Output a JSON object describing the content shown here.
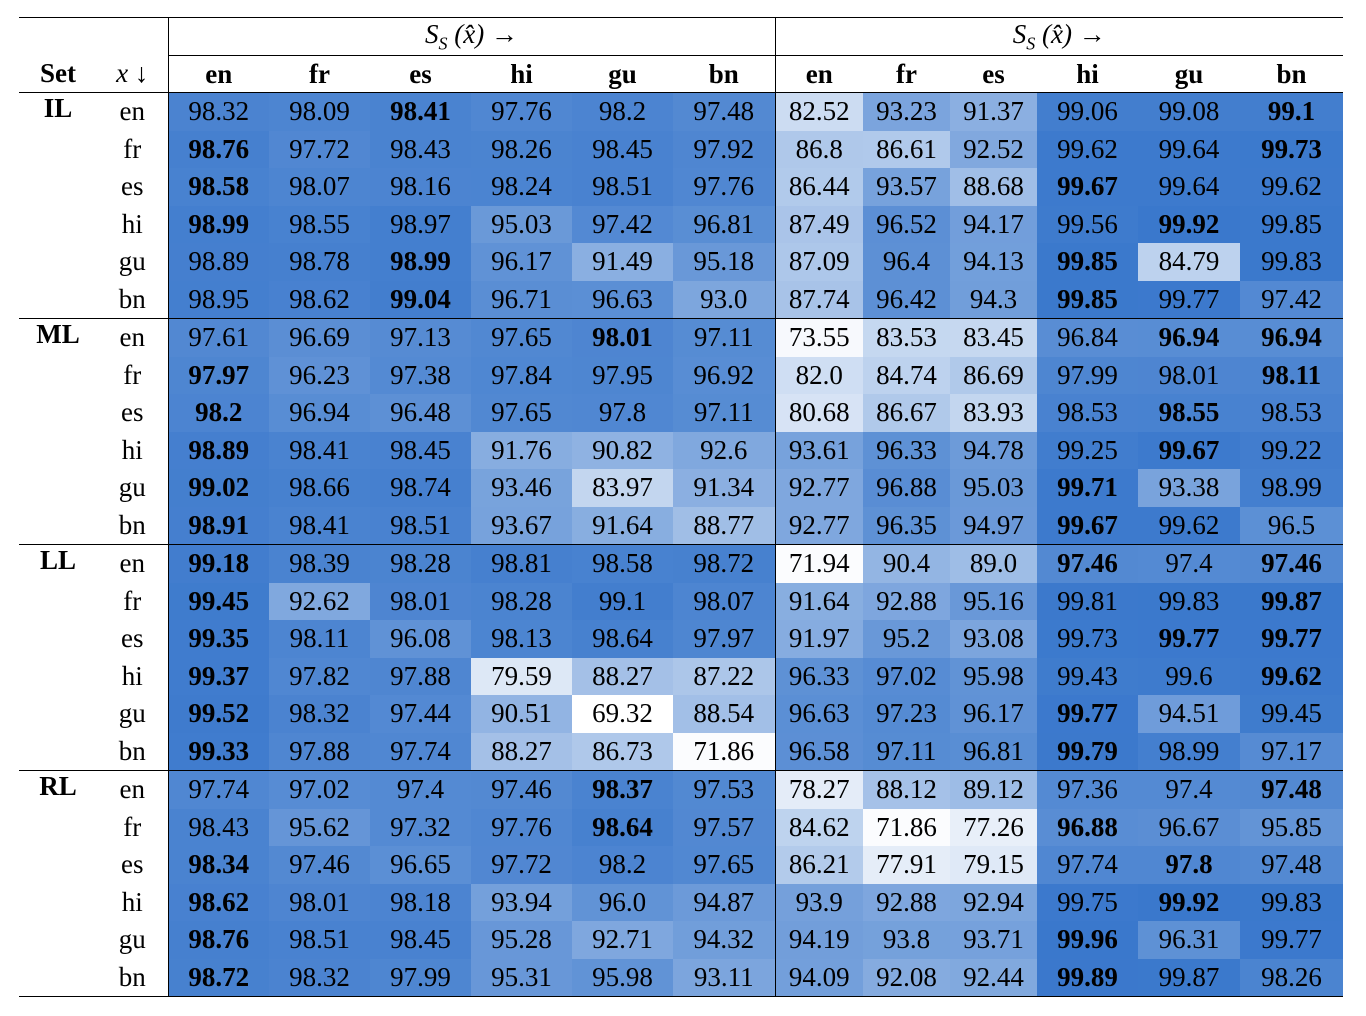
{
  "header": {
    "group_left": "S_S (x̂) →",
    "group_right": "S_S (x̂) →",
    "set_label": "Set",
    "x_label": "x ↓",
    "columns": [
      "en",
      "fr",
      "es",
      "hi",
      "gu",
      "bn",
      "en",
      "fr",
      "es",
      "hi",
      "gu",
      "bn"
    ]
  },
  "chart_data": {
    "type": "table",
    "columns": [
      "en",
      "fr",
      "es",
      "hi",
      "gu",
      "bn",
      "en",
      "fr",
      "es",
      "hi",
      "gu",
      "bn"
    ],
    "groups": [
      {
        "set": "IL",
        "rows": [
          {
            "x": "en",
            "values": [
              "98.32",
              "98.09",
              "98.41",
              "97.76",
              "98.2",
              "97.48",
              "82.52",
              "93.23",
              "91.37",
              "99.06",
              "99.08",
              "99.1"
            ],
            "bold": [
              2,
              11
            ]
          },
          {
            "x": "fr",
            "values": [
              "98.76",
              "97.72",
              "98.43",
              "98.26",
              "98.45",
              "97.92",
              "86.8",
              "86.61",
              "92.52",
              "99.62",
              "99.64",
              "99.73"
            ],
            "bold": [
              0,
              11
            ]
          },
          {
            "x": "es",
            "values": [
              "98.58",
              "98.07",
              "98.16",
              "98.24",
              "98.51",
              "97.76",
              "86.44",
              "93.57",
              "88.68",
              "99.67",
              "99.64",
              "99.62"
            ],
            "bold": [
              0,
              9
            ]
          },
          {
            "x": "hi",
            "values": [
              "98.99",
              "98.55",
              "98.97",
              "95.03",
              "97.42",
              "96.81",
              "87.49",
              "96.52",
              "94.17",
              "99.56",
              "99.92",
              "99.85"
            ],
            "bold": [
              0,
              10
            ]
          },
          {
            "x": "gu",
            "values": [
              "98.89",
              "98.78",
              "98.99",
              "96.17",
              "91.49",
              "95.18",
              "87.09",
              "96.4",
              "94.13",
              "99.85",
              "84.79",
              "99.83"
            ],
            "bold": [
              2,
              9
            ]
          },
          {
            "x": "bn",
            "values": [
              "98.95",
              "98.62",
              "99.04",
              "96.71",
              "96.63",
              "93.0",
              "87.74",
              "96.42",
              "94.3",
              "99.85",
              "99.77",
              "97.42"
            ],
            "bold": [
              2,
              9
            ]
          }
        ]
      },
      {
        "set": "ML",
        "rows": [
          {
            "x": "en",
            "values": [
              "97.61",
              "96.69",
              "97.13",
              "97.65",
              "98.01",
              "97.11",
              "73.55",
              "83.53",
              "83.45",
              "96.84",
              "96.94",
              "96.94"
            ],
            "bold": [
              4,
              10,
              11
            ]
          },
          {
            "x": "fr",
            "values": [
              "97.97",
              "96.23",
              "97.38",
              "97.84",
              "97.95",
              "96.92",
              "82.0",
              "84.74",
              "86.69",
              "97.99",
              "98.01",
              "98.11"
            ],
            "bold": [
              0,
              11
            ]
          },
          {
            "x": "es",
            "values": [
              "98.2",
              "96.94",
              "96.48",
              "97.65",
              "97.8",
              "97.11",
              "80.68",
              "86.67",
              "83.93",
              "98.53",
              "98.55",
              "98.53"
            ],
            "bold": [
              0,
              10
            ]
          },
          {
            "x": "hi",
            "values": [
              "98.89",
              "98.41",
              "98.45",
              "91.76",
              "90.82",
              "92.6",
              "93.61",
              "96.33",
              "94.78",
              "99.25",
              "99.67",
              "99.22"
            ],
            "bold": [
              0,
              10
            ]
          },
          {
            "x": "gu",
            "values": [
              "99.02",
              "98.66",
              "98.74",
              "93.46",
              "83.97",
              "91.34",
              "92.77",
              "96.88",
              "95.03",
              "99.71",
              "93.38",
              "98.99"
            ],
            "bold": [
              0,
              9
            ]
          },
          {
            "x": "bn",
            "values": [
              "98.91",
              "98.41",
              "98.51",
              "93.67",
              "91.64",
              "88.77",
              "92.77",
              "96.35",
              "94.97",
              "99.67",
              "99.62",
              "96.5"
            ],
            "bold": [
              0,
              9
            ]
          }
        ]
      },
      {
        "set": "LL",
        "rows": [
          {
            "x": "en",
            "values": [
              "99.18",
              "98.39",
              "98.28",
              "98.81",
              "98.58",
              "98.72",
              "71.94",
              "90.4",
              "89.0",
              "97.46",
              "97.4",
              "97.46"
            ],
            "bold": [
              0,
              9,
              11
            ]
          },
          {
            "x": "fr",
            "values": [
              "99.45",
              "92.62",
              "98.01",
              "98.28",
              "99.1",
              "98.07",
              "91.64",
              "92.88",
              "95.16",
              "99.81",
              "99.83",
              "99.87"
            ],
            "bold": [
              0,
              11
            ]
          },
          {
            "x": "es",
            "values": [
              "99.35",
              "98.11",
              "96.08",
              "98.13",
              "98.64",
              "97.97",
              "91.97",
              "95.2",
              "93.08",
              "99.73",
              "99.77",
              "99.77"
            ],
            "bold": [
              0,
              10,
              11
            ]
          },
          {
            "x": "hi",
            "values": [
              "99.37",
              "97.82",
              "97.88",
              "79.59",
              "88.27",
              "87.22",
              "96.33",
              "97.02",
              "95.98",
              "99.43",
              "99.6",
              "99.62"
            ],
            "bold": [
              0,
              11
            ]
          },
          {
            "x": "gu",
            "values": [
              "99.52",
              "98.32",
              "97.44",
              "90.51",
              "69.32",
              "88.54",
              "96.63",
              "97.23",
              "96.17",
              "99.77",
              "94.51",
              "99.45"
            ],
            "bold": [
              0,
              9
            ]
          },
          {
            "x": "bn",
            "values": [
              "99.33",
              "97.88",
              "97.74",
              "88.27",
              "86.73",
              "71.86",
              "96.58",
              "97.11",
              "96.81",
              "99.79",
              "98.99",
              "97.17"
            ],
            "bold": [
              0,
              9
            ]
          }
        ]
      },
      {
        "set": "RL",
        "rows": [
          {
            "x": "en",
            "values": [
              "97.74",
              "97.02",
              "97.4",
              "97.46",
              "98.37",
              "97.53",
              "78.27",
              "88.12",
              "89.12",
              "97.36",
              "97.4",
              "97.48"
            ],
            "bold": [
              4,
              11
            ]
          },
          {
            "x": "fr",
            "values": [
              "98.43",
              "95.62",
              "97.32",
              "97.76",
              "98.64",
              "97.57",
              "84.62",
              "71.86",
              "77.26",
              "96.88",
              "96.67",
              "95.85"
            ],
            "bold": [
              4,
              9
            ]
          },
          {
            "x": "es",
            "values": [
              "98.34",
              "97.46",
              "96.65",
              "97.72",
              "98.2",
              "97.65",
              "86.21",
              "77.91",
              "79.15",
              "97.74",
              "97.8",
              "97.48"
            ],
            "bold": [
              0,
              10
            ]
          },
          {
            "x": "hi",
            "values": [
              "98.62",
              "98.01",
              "98.18",
              "93.94",
              "96.0",
              "94.87",
              "93.9",
              "92.88",
              "92.94",
              "99.75",
              "99.92",
              "99.83"
            ],
            "bold": [
              0,
              10
            ]
          },
          {
            "x": "gu",
            "values": [
              "98.76",
              "98.51",
              "98.45",
              "95.28",
              "92.71",
              "94.32",
              "94.19",
              "93.8",
              "93.71",
              "99.96",
              "96.31",
              "99.77"
            ],
            "bold": [
              0,
              9
            ]
          },
          {
            "x": "bn",
            "values": [
              "98.72",
              "98.32",
              "97.99",
              "95.31",
              "95.98",
              "93.11",
              "94.09",
              "92.08",
              "92.44",
              "99.89",
              "99.87",
              "98.26"
            ],
            "bold": [
              0,
              9
            ]
          }
        ]
      }
    ],
    "color_scale": {
      "low": "#ffffff",
      "high": "#3a78cc",
      "min_value": 69.32,
      "max_value": 99.96
    }
  }
}
